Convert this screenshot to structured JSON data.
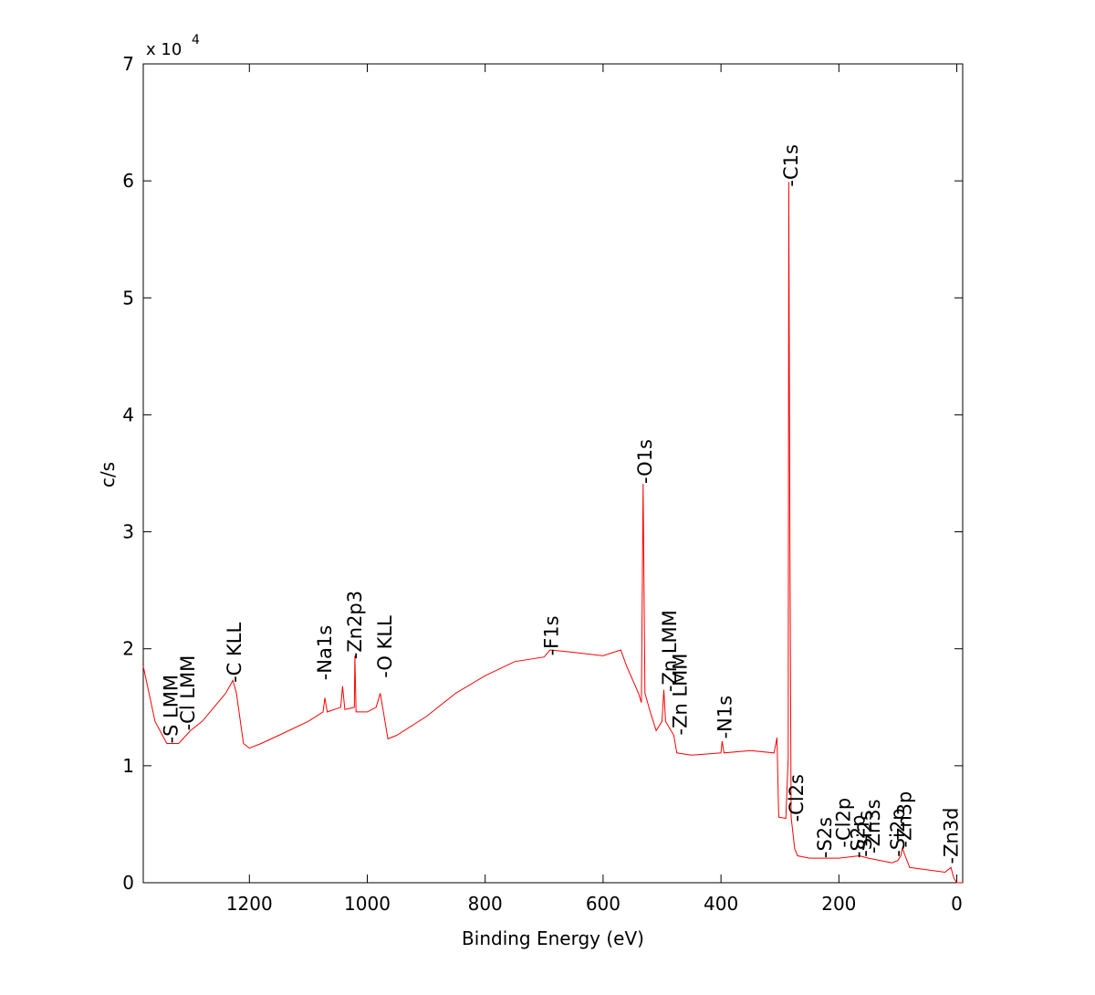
{
  "chart_data": {
    "type": "line",
    "x_label": "Binding Energy (eV)",
    "y_label": "c/s",
    "y_multiplier": "x 10",
    "y_multiplier_exp": "4",
    "xlim": [
      1380,
      -10
    ],
    "ylim": [
      0,
      70000
    ],
    "xticks": [
      1200,
      1000,
      800,
      600,
      400,
      200,
      0
    ],
    "yticks": [
      {
        "value": 0,
        "label": "0"
      },
      {
        "value": 10000,
        "label": "1"
      },
      {
        "value": 20000,
        "label": "2"
      },
      {
        "value": 30000,
        "label": "3"
      },
      {
        "value": 40000,
        "label": "4"
      },
      {
        "value": 50000,
        "label": "5"
      },
      {
        "value": 60000,
        "label": "6"
      },
      {
        "value": 70000,
        "label": "7"
      }
    ],
    "series": [
      {
        "color": "#ff0000",
        "x": [
          1380,
          1360,
          1340,
          1320,
          1300,
          1280,
          1260,
          1240,
          1228,
          1222,
          1210,
          1200,
          1180,
          1150,
          1100,
          1075,
          1072,
          1068,
          1045,
          1042,
          1038,
          1022,
          1021,
          1019,
          1000,
          985,
          978,
          970,
          965,
          950,
          900,
          850,
          800,
          750,
          700,
          690,
          650,
          600,
          570,
          560,
          540,
          535,
          532,
          529,
          520,
          510,
          500,
          497,
          494,
          480,
          475,
          450,
          400,
          398,
          395,
          350,
          310,
          305,
          302,
          290,
          286,
          285,
          283,
          281,
          275,
          270,
          250,
          200,
          165,
          150,
          110,
          100,
          95,
          92,
          89,
          80,
          50,
          20,
          10,
          5,
          0,
          -10
        ],
        "values": [
          18500,
          13800,
          11900,
          11900,
          13000,
          13800,
          15000,
          16200,
          17300,
          16200,
          11900,
          11500,
          11900,
          12600,
          13800,
          14600,
          15800,
          14600,
          15000,
          16800,
          14800,
          15000,
          19400,
          14600,
          14600,
          15000,
          16200,
          13800,
          12300,
          12600,
          14200,
          16200,
          17700,
          18900,
          19300,
          19900,
          19700,
          19400,
          19900,
          18500,
          16200,
          15400,
          34100,
          16200,
          14600,
          13000,
          13800,
          16500,
          13800,
          12600,
          11100,
          10900,
          11100,
          12100,
          11100,
          11300,
          11100,
          12400,
          5600,
          5500,
          10700,
          59900,
          28600,
          5600,
          2900,
          2300,
          2100,
          2100,
          2300,
          2100,
          1700,
          1900,
          2300,
          3000,
          2500,
          1300,
          1100,
          900,
          1300,
          400,
          0,
          0
        ]
      }
    ],
    "annotations": [
      {
        "text": "-S LMM",
        "x": 1333,
        "y": 11900
      },
      {
        "text": "-Cl LMM",
        "x": 1304,
        "y": 13000
      },
      {
        "text": "-C KLL",
        "x": 1225,
        "y": 17100
      },
      {
        "text": "-Na1s",
        "x": 1072,
        "y": 17300
      },
      {
        "text": "-Zn2p3",
        "x": 1021,
        "y": 19100
      },
      {
        "text": "-O KLL",
        "x": 970,
        "y": 17500
      },
      {
        "text": "-F1s",
        "x": 687,
        "y": 19400
      },
      {
        "text": "-O1s",
        "x": 529,
        "y": 34100
      },
      {
        "text": "-Zn LMM",
        "x": 487,
        "y": 16300
      },
      {
        "text": "-Zn LMM",
        "x": 469,
        "y": 12600
      },
      {
        "text": "-N1s",
        "x": 393,
        "y": 12300
      },
      {
        "text": "-C1s",
        "x": 281,
        "y": 59500
      },
      {
        "text": "-Cl2s",
        "x": 272,
        "y": 5200
      },
      {
        "text": "-S2s",
        "x": 224,
        "y": 2100
      },
      {
        "text": "-Cl2p",
        "x": 192,
        "y": 3000
      },
      {
        "text": "-S2p",
        "x": 167,
        "y": 2100
      },
      {
        "text": "-Si2s",
        "x": 156,
        "y": 2200
      },
      {
        "text": "-Zn3s",
        "x": 142,
        "y": 2500
      },
      {
        "text": "-Si2p",
        "x": 100,
        "y": 2200
      },
      {
        "text": "-Zn3p",
        "x": 88,
        "y": 3000
      },
      {
        "text": "-Zn3d",
        "x": 9,
        "y": 1600
      }
    ]
  }
}
